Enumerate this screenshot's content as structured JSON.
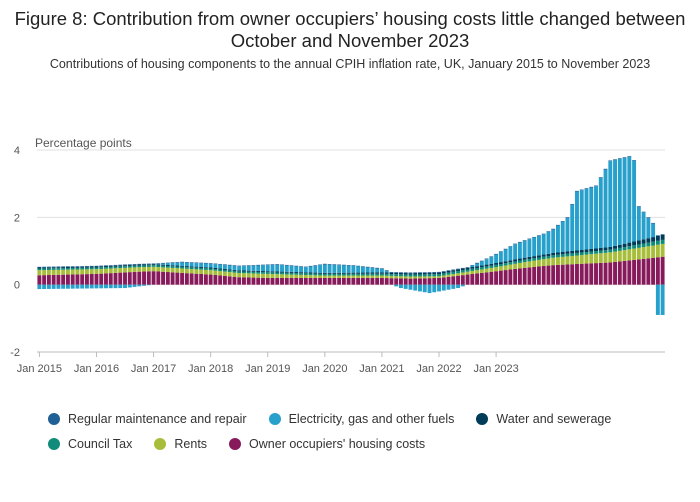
{
  "title": "Figure 8: Contribution from owner occupiers’ housing costs little changed between October and November 2023",
  "subtitle": "Contributions of housing components to the annual CPIH inflation rate, UK, January 2015 to November 2023",
  "chart_data": {
    "type": "bar",
    "stacked": true,
    "ylabel": "Percentage points",
    "ylim": [
      -2,
      4.5
    ],
    "yticks": [
      -2,
      0,
      2,
      4
    ],
    "xtick_labels": [
      "Jan 2015",
      "Jan 2016",
      "Jan 2017",
      "Jan 2018",
      "Jan 2019",
      "Jan 2020",
      "Jan 2021",
      "Jan 2022",
      "Jan 2023"
    ],
    "grid": true,
    "legend_position": "bottom",
    "x_start": "2015-01",
    "x_end": "2023-11",
    "series": [
      {
        "name": "Regular maintenance and repair",
        "color": "#206095",
        "anchors": [
          [
            0,
            0.02
          ],
          [
            106,
            0.02
          ]
        ]
      },
      {
        "name": "Electricity, gas and other fuels",
        "color": "#27a0cc",
        "anchors": [
          [
            0,
            -0.13
          ],
          [
            18,
            -0.1
          ],
          [
            24,
            0.0
          ],
          [
            30,
            0.1
          ],
          [
            42,
            0.12
          ],
          [
            50,
            0.2
          ],
          [
            56,
            0.15
          ],
          [
            60,
            0.25
          ],
          [
            66,
            0.2
          ],
          [
            72,
            0.1
          ],
          [
            76,
            -0.1
          ],
          [
            82,
            -0.25
          ],
          [
            88,
            -0.1
          ],
          [
            90,
            0.0
          ],
          [
            95,
            0.2
          ],
          [
            100,
            0.45
          ],
          [
            104,
            0.55
          ],
          [
            106,
            0.6
          ],
          [
            108,
            0.7
          ],
          [
            111,
            1.0
          ],
          [
            113,
            1.75
          ],
          [
            117,
            1.85
          ],
          [
            120,
            2.55
          ],
          [
            124,
            2.55
          ],
          [
            125,
            2.4
          ],
          [
            126,
            1.0
          ],
          [
            129,
            0.4
          ],
          [
            130,
            -0.9
          ]
        ]
      },
      {
        "name": "Water and sewerage",
        "color": "#003c57",
        "anchors": [
          [
            0,
            0.03
          ],
          [
            60,
            0.03
          ],
          [
            102,
            0.06
          ],
          [
            120,
            0.08
          ],
          [
            131,
            0.15
          ]
        ]
      },
      {
        "name": "Council Tax",
        "color": "#118c7b",
        "anchors": [
          [
            0,
            0.05
          ],
          [
            60,
            0.05
          ],
          [
            120,
            0.08
          ],
          [
            131,
            0.12
          ]
        ]
      },
      {
        "name": "Rents",
        "color": "#a8bd3a",
        "anchors": [
          [
            0,
            0.15
          ],
          [
            24,
            0.13
          ],
          [
            36,
            0.13
          ],
          [
            48,
            0.12
          ],
          [
            60,
            0.07
          ],
          [
            72,
            0.07
          ],
          [
            84,
            0.05
          ],
          [
            96,
            0.12
          ],
          [
            108,
            0.22
          ],
          [
            120,
            0.3
          ],
          [
            131,
            0.38
          ]
        ]
      },
      {
        "name": "Owner occupiers' housing costs",
        "color": "#871a5b",
        "anchors": [
          [
            0,
            0.28
          ],
          [
            12,
            0.32
          ],
          [
            20,
            0.38
          ],
          [
            24,
            0.4
          ],
          [
            30,
            0.35
          ],
          [
            36,
            0.3
          ],
          [
            42,
            0.22
          ],
          [
            48,
            0.2
          ],
          [
            60,
            0.2
          ],
          [
            72,
            0.2
          ],
          [
            78,
            0.18
          ],
          [
            84,
            0.2
          ],
          [
            90,
            0.3
          ],
          [
            96,
            0.4
          ],
          [
            102,
            0.5
          ],
          [
            108,
            0.58
          ],
          [
            114,
            0.62
          ],
          [
            120,
            0.66
          ],
          [
            126,
            0.75
          ],
          [
            131,
            0.83
          ]
        ]
      }
    ]
  }
}
